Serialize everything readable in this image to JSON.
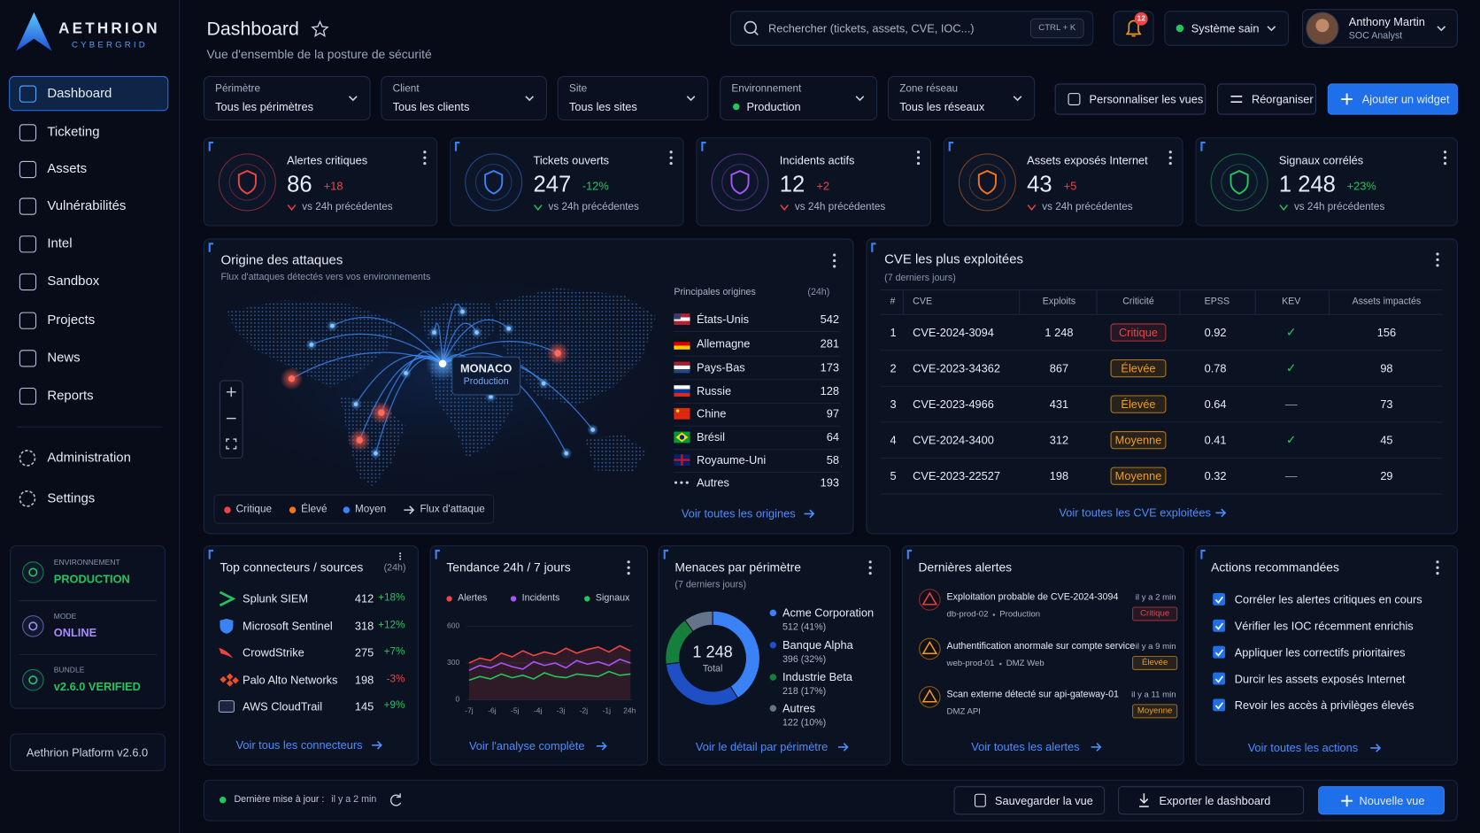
{
  "brand": {
    "name": "AETHRION",
    "tagline": "CYBERGRID"
  },
  "nav": {
    "items": [
      "Dashboard",
      "Ticketing",
      "Assets",
      "Vulnérabilités",
      "Intel",
      "Sandbox",
      "Projects",
      "News",
      "Reports"
    ],
    "admin": [
      "Administration",
      "Settings"
    ]
  },
  "status": [
    {
      "label": "ENVIRONNEMENT",
      "value": "PRODUCTION"
    },
    {
      "label": "MODE",
      "value": "ONLINE"
    },
    {
      "label": "BUNDLE",
      "value": "v2.6.0 VERIFIED"
    }
  ],
  "platform": "Aethrion Platform v2.6.0",
  "header": {
    "title": "Dashboard",
    "subtitle": "Vue d'ensemble de la posture de sécurité",
    "search": "Rechercher (tickets, assets, CVE, IOC...)",
    "shortcut": "CTRL + K",
    "notifications": "12",
    "system": "Système sain",
    "user": {
      "name": "Anthony Martin",
      "role": "SOC Analyst"
    }
  },
  "filters": [
    {
      "label": "Périmètre",
      "value": "Tous les périmètres"
    },
    {
      "label": "Client",
      "value": "Tous les clients"
    },
    {
      "label": "Site",
      "value": "Tous les sites"
    },
    {
      "label": "Environnement",
      "value": "Production"
    },
    {
      "label": "Zone réseau",
      "value": "Tous les réseaux"
    }
  ],
  "actions": [
    "Personnaliser les vues",
    "Réorganiser",
    "Ajouter un widget"
  ],
  "kpis": [
    {
      "title": "Alertes critiques",
      "value": "86",
      "delta": "+18",
      "note": "vs 24h précédentes"
    },
    {
      "title": "Tickets ouverts",
      "value": "247",
      "delta": "-12%",
      "note": "vs 24h précédentes"
    },
    {
      "title": "Incidents actifs",
      "value": "12",
      "delta": "+2",
      "note": "vs 24h précédentes"
    },
    {
      "title": "Assets exposés Internet",
      "value": "43",
      "delta": "+5",
      "note": "vs 24h précédentes"
    },
    {
      "title": "Signaux corrélés",
      "value": "1 248",
      "delta": "+23%",
      "note": "vs 24h précédentes"
    }
  ],
  "origins": {
    "title": "Origine des attaques",
    "subtitle": "Flux d'attaques détectés vers vos environnements",
    "target": {
      "name": "MONACO",
      "env": "Production"
    },
    "list_title": "Principales origines",
    "period": "(24h)",
    "rows": [
      {
        "country": "États-Unis",
        "count": "542"
      },
      {
        "country": "Allemagne",
        "count": "281"
      },
      {
        "country": "Pays-Bas",
        "count": "173"
      },
      {
        "country": "Russie",
        "count": "128"
      },
      {
        "country": "Chine",
        "count": "97"
      },
      {
        "country": "Brésil",
        "count": "64"
      },
      {
        "country": "Royaume-Uni",
        "count": "58"
      },
      {
        "country": "Autres",
        "count": "193"
      }
    ],
    "legend": [
      "Critique",
      "Élevé",
      "Moyen",
      "Flux d'attaque"
    ],
    "link": "Voir toutes les origines"
  },
  "cve": {
    "title": "CVE les plus exploitées",
    "subtitle": "(7 derniers jours)",
    "columns": [
      "#",
      "CVE",
      "Exploits",
      "Criticité",
      "EPSS",
      "KEV",
      "Assets impactés"
    ],
    "rows": [
      [
        "1",
        "CVE-2024-3094",
        "1 248",
        "Critique",
        "0.92",
        "✓",
        "156"
      ],
      [
        "2",
        "CVE-2023-34362",
        "867",
        "Élevée",
        "0.78",
        "✓",
        "98"
      ],
      [
        "3",
        "CVE-2023-4966",
        "431",
        "Élevée",
        "0.64",
        "—",
        "73"
      ],
      [
        "4",
        "CVE-2024-3400",
        "312",
        "Moyenne",
        "0.41",
        "✓",
        "45"
      ],
      [
        "5",
        "CVE-2023-22527",
        "198",
        "Moyenne",
        "0.32",
        "—",
        "29"
      ]
    ],
    "link": "Voir toutes les CVE exploitées"
  },
  "connectors": {
    "title": "Top connecteurs / sources",
    "period": "(24h)",
    "rows": [
      {
        "name": "Splunk SIEM",
        "count": "412",
        "delta": "+18%"
      },
      {
        "name": "Microsoft Sentinel",
        "count": "318",
        "delta": "+12%"
      },
      {
        "name": "CrowdStrike",
        "count": "275",
        "delta": "+7%"
      },
      {
        "name": "Palo Alto Networks",
        "count": "198",
        "delta": "-3%"
      },
      {
        "name": "AWS CloudTrail",
        "count": "145",
        "delta": "+9%"
      }
    ],
    "link": "Voir tous les connecteurs"
  },
  "trend": {
    "title": "Tendance 24h / 7 jours",
    "type": "line",
    "categories": [
      "-7j",
      "-6j",
      "-5j",
      "-4j",
      "-3j",
      "-2j",
      "-1j",
      "24h"
    ],
    "series": [
      {
        "name": "Alertes",
        "color": "#ef4444",
        "values": [
          300,
          340,
          320,
          380,
          350,
          400,
          360,
          390,
          370,
          420,
          380,
          410,
          430,
          390,
          440,
          400
        ]
      },
      {
        "name": "Incidents",
        "color": "#a855f7",
        "values": [
          240,
          280,
          260,
          300,
          270,
          250,
          310,
          280,
          300,
          260,
          320,
          290,
          310,
          280,
          330,
          300
        ]
      },
      {
        "name": "Signaux",
        "color": "#22c55e",
        "values": [
          160,
          190,
          170,
          210,
          180,
          200,
          170,
          220,
          190,
          180,
          210,
          200,
          190,
          230,
          200,
          210
        ]
      }
    ],
    "ylim": [
      0,
      600
    ],
    "yticks": [
      0,
      300,
      600
    ],
    "link": "Voir l'analyse complète"
  },
  "threats": {
    "title": "Menaces par périmètre",
    "subtitle": "(7 derniers jours)",
    "total": "1 248",
    "total_label": "Total",
    "segments": [
      {
        "name": "Acme Corporation",
        "label": "512 (41%)",
        "percent": 41,
        "color": "#3b82f6"
      },
      {
        "name": "Banque Alpha",
        "label": "396 (32%)",
        "percent": 32,
        "color": "#1e4fc4"
      },
      {
        "name": "Industrie Beta",
        "label": "218 (17%)",
        "percent": 17,
        "color": "#15803d"
      },
      {
        "name": "Autres",
        "label": "122 (10%)",
        "percent": 10,
        "color": "#64748b"
      }
    ],
    "link": "Voir le détail par périmètre"
  },
  "alerts": {
    "title": "Dernières alertes",
    "items": [
      {
        "title": "Exploitation probable de CVE-2024-3094",
        "meta": [
          "db-prod-02",
          "Production"
        ],
        "time": "il y a 2 min",
        "severity": "Critique"
      },
      {
        "title": "Authentification anormale sur compte service",
        "meta": [
          "web-prod-01",
          "DMZ Web"
        ],
        "time": "il y a 9 min",
        "severity": "Élevée"
      },
      {
        "title": "Scan externe détecté sur api-gateway-01",
        "meta": [
          "DMZ API"
        ],
        "time": "il y a 11 min",
        "severity": "Moyenne"
      }
    ],
    "link": "Voir toutes les alertes"
  },
  "recommended": {
    "title": "Actions recommandées",
    "items": [
      "Corréler les alertes critiques en cours",
      "Vérifier les IOC récemment enrichis",
      "Appliquer les correctifs prioritaires",
      "Durcir les assets exposés Internet",
      "Revoir les accès à privilèges élevés"
    ],
    "link": "Voir toutes les actions"
  },
  "footer": {
    "updated_label": "Dernière mise à jour :",
    "updated": "il y a 2 min",
    "buttons": [
      "Sauvegarder la vue",
      "Exporter le dashboard",
      "Nouvelle vue"
    ]
  }
}
